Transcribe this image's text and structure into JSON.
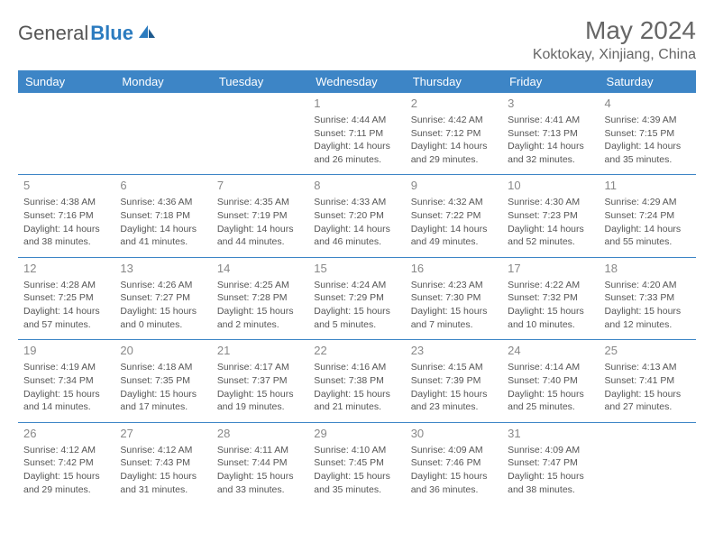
{
  "brand": {
    "part1": "General",
    "part2": "Blue"
  },
  "title": "May 2024",
  "location": "Koktokay, Xinjiang, China",
  "colors": {
    "header_bg": "#3d85c6",
    "header_text": "#ffffff",
    "border": "#3d85c6",
    "daynum": "#888888",
    "body_text": "#555555",
    "brand_blue": "#2b7bbf",
    "brand_gray": "#555555"
  },
  "weekdays": [
    "Sunday",
    "Monday",
    "Tuesday",
    "Wednesday",
    "Thursday",
    "Friday",
    "Saturday"
  ],
  "weeks": [
    [
      null,
      null,
      null,
      {
        "n": "1",
        "sr": "Sunrise: 4:44 AM",
        "ss": "Sunset: 7:11 PM",
        "d1": "Daylight: 14 hours",
        "d2": "and 26 minutes."
      },
      {
        "n": "2",
        "sr": "Sunrise: 4:42 AM",
        "ss": "Sunset: 7:12 PM",
        "d1": "Daylight: 14 hours",
        "d2": "and 29 minutes."
      },
      {
        "n": "3",
        "sr": "Sunrise: 4:41 AM",
        "ss": "Sunset: 7:13 PM",
        "d1": "Daylight: 14 hours",
        "d2": "and 32 minutes."
      },
      {
        "n": "4",
        "sr": "Sunrise: 4:39 AM",
        "ss": "Sunset: 7:15 PM",
        "d1": "Daylight: 14 hours",
        "d2": "and 35 minutes."
      }
    ],
    [
      {
        "n": "5",
        "sr": "Sunrise: 4:38 AM",
        "ss": "Sunset: 7:16 PM",
        "d1": "Daylight: 14 hours",
        "d2": "and 38 minutes."
      },
      {
        "n": "6",
        "sr": "Sunrise: 4:36 AM",
        "ss": "Sunset: 7:18 PM",
        "d1": "Daylight: 14 hours",
        "d2": "and 41 minutes."
      },
      {
        "n": "7",
        "sr": "Sunrise: 4:35 AM",
        "ss": "Sunset: 7:19 PM",
        "d1": "Daylight: 14 hours",
        "d2": "and 44 minutes."
      },
      {
        "n": "8",
        "sr": "Sunrise: 4:33 AM",
        "ss": "Sunset: 7:20 PM",
        "d1": "Daylight: 14 hours",
        "d2": "and 46 minutes."
      },
      {
        "n": "9",
        "sr": "Sunrise: 4:32 AM",
        "ss": "Sunset: 7:22 PM",
        "d1": "Daylight: 14 hours",
        "d2": "and 49 minutes."
      },
      {
        "n": "10",
        "sr": "Sunrise: 4:30 AM",
        "ss": "Sunset: 7:23 PM",
        "d1": "Daylight: 14 hours",
        "d2": "and 52 minutes."
      },
      {
        "n": "11",
        "sr": "Sunrise: 4:29 AM",
        "ss": "Sunset: 7:24 PM",
        "d1": "Daylight: 14 hours",
        "d2": "and 55 minutes."
      }
    ],
    [
      {
        "n": "12",
        "sr": "Sunrise: 4:28 AM",
        "ss": "Sunset: 7:25 PM",
        "d1": "Daylight: 14 hours",
        "d2": "and 57 minutes."
      },
      {
        "n": "13",
        "sr": "Sunrise: 4:26 AM",
        "ss": "Sunset: 7:27 PM",
        "d1": "Daylight: 15 hours",
        "d2": "and 0 minutes."
      },
      {
        "n": "14",
        "sr": "Sunrise: 4:25 AM",
        "ss": "Sunset: 7:28 PM",
        "d1": "Daylight: 15 hours",
        "d2": "and 2 minutes."
      },
      {
        "n": "15",
        "sr": "Sunrise: 4:24 AM",
        "ss": "Sunset: 7:29 PM",
        "d1": "Daylight: 15 hours",
        "d2": "and 5 minutes."
      },
      {
        "n": "16",
        "sr": "Sunrise: 4:23 AM",
        "ss": "Sunset: 7:30 PM",
        "d1": "Daylight: 15 hours",
        "d2": "and 7 minutes."
      },
      {
        "n": "17",
        "sr": "Sunrise: 4:22 AM",
        "ss": "Sunset: 7:32 PM",
        "d1": "Daylight: 15 hours",
        "d2": "and 10 minutes."
      },
      {
        "n": "18",
        "sr": "Sunrise: 4:20 AM",
        "ss": "Sunset: 7:33 PM",
        "d1": "Daylight: 15 hours",
        "d2": "and 12 minutes."
      }
    ],
    [
      {
        "n": "19",
        "sr": "Sunrise: 4:19 AM",
        "ss": "Sunset: 7:34 PM",
        "d1": "Daylight: 15 hours",
        "d2": "and 14 minutes."
      },
      {
        "n": "20",
        "sr": "Sunrise: 4:18 AM",
        "ss": "Sunset: 7:35 PM",
        "d1": "Daylight: 15 hours",
        "d2": "and 17 minutes."
      },
      {
        "n": "21",
        "sr": "Sunrise: 4:17 AM",
        "ss": "Sunset: 7:37 PM",
        "d1": "Daylight: 15 hours",
        "d2": "and 19 minutes."
      },
      {
        "n": "22",
        "sr": "Sunrise: 4:16 AM",
        "ss": "Sunset: 7:38 PM",
        "d1": "Daylight: 15 hours",
        "d2": "and 21 minutes."
      },
      {
        "n": "23",
        "sr": "Sunrise: 4:15 AM",
        "ss": "Sunset: 7:39 PM",
        "d1": "Daylight: 15 hours",
        "d2": "and 23 minutes."
      },
      {
        "n": "24",
        "sr": "Sunrise: 4:14 AM",
        "ss": "Sunset: 7:40 PM",
        "d1": "Daylight: 15 hours",
        "d2": "and 25 minutes."
      },
      {
        "n": "25",
        "sr": "Sunrise: 4:13 AM",
        "ss": "Sunset: 7:41 PM",
        "d1": "Daylight: 15 hours",
        "d2": "and 27 minutes."
      }
    ],
    [
      {
        "n": "26",
        "sr": "Sunrise: 4:12 AM",
        "ss": "Sunset: 7:42 PM",
        "d1": "Daylight: 15 hours",
        "d2": "and 29 minutes."
      },
      {
        "n": "27",
        "sr": "Sunrise: 4:12 AM",
        "ss": "Sunset: 7:43 PM",
        "d1": "Daylight: 15 hours",
        "d2": "and 31 minutes."
      },
      {
        "n": "28",
        "sr": "Sunrise: 4:11 AM",
        "ss": "Sunset: 7:44 PM",
        "d1": "Daylight: 15 hours",
        "d2": "and 33 minutes."
      },
      {
        "n": "29",
        "sr": "Sunrise: 4:10 AM",
        "ss": "Sunset: 7:45 PM",
        "d1": "Daylight: 15 hours",
        "d2": "and 35 minutes."
      },
      {
        "n": "30",
        "sr": "Sunrise: 4:09 AM",
        "ss": "Sunset: 7:46 PM",
        "d1": "Daylight: 15 hours",
        "d2": "and 36 minutes."
      },
      {
        "n": "31",
        "sr": "Sunrise: 4:09 AM",
        "ss": "Sunset: 7:47 PM",
        "d1": "Daylight: 15 hours",
        "d2": "and 38 minutes."
      },
      null
    ]
  ]
}
